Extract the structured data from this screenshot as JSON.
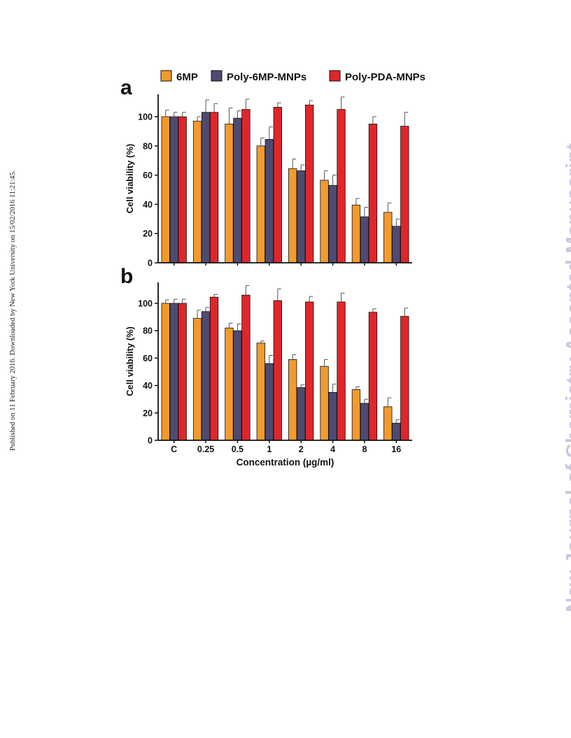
{
  "side_note": "Published on 11 February 2016. Downloaded by New York University on 15/02/2016 11:21:45.",
  "watermark": "New Journal of Chemistry Accepted Manuscript",
  "colors": {
    "6MP": "#f39a2e",
    "Poly-6MP-MNPs": "#4f4a72",
    "Poly-PDA-MNPs": "#e0262a"
  },
  "legend": [
    "6MP",
    "Poly-6MP-MNPs",
    "Poly-PDA-MNPs"
  ],
  "chart_data": [
    {
      "type": "bar",
      "panel": "a",
      "categories": [
        "C",
        "0.25",
        "0.5",
        "1",
        "2",
        "4",
        "8",
        "16"
      ],
      "ylabel": "Cell viability (%)",
      "xlabel": "",
      "ylim": [
        0,
        115
      ],
      "yticks": [
        0,
        20,
        40,
        60,
        80,
        100
      ],
      "series": [
        {
          "name": "6MP",
          "values": [
            100,
            97,
            95,
            80,
            64.5,
            56.5,
            39.5,
            34.5
          ],
          "errors": [
            4.5,
            3,
            11,
            5.5,
            6.5,
            6.5,
            4.5,
            6.5
          ]
        },
        {
          "name": "Poly-6MP-MNPs",
          "values": [
            100,
            103,
            99,
            84.5,
            63,
            53,
            31.5,
            25
          ],
          "errors": [
            3,
            8.5,
            5,
            8.5,
            4,
            7,
            6.5,
            5
          ]
        },
        {
          "name": "Poly-PDA-MNPs",
          "values": [
            100,
            103,
            105,
            106.5,
            108,
            105,
            95,
            93.5
          ],
          "errors": [
            3,
            6,
            7,
            3,
            3,
            8.5,
            5,
            9.5
          ]
        }
      ]
    },
    {
      "type": "bar",
      "panel": "b",
      "categories": [
        "C",
        "0.25",
        "0.5",
        "1",
        "2",
        "4",
        "8",
        "16"
      ],
      "ylabel": "Cell viability (%)",
      "xlabel": "Concentration (µg/ml)",
      "ylim": [
        0,
        115
      ],
      "yticks": [
        0,
        20,
        40,
        60,
        80,
        100
      ],
      "series": [
        {
          "name": "6MP",
          "values": [
            100,
            89,
            82,
            71,
            59,
            54,
            37,
            24.5
          ],
          "errors": [
            2.5,
            6,
            3.5,
            1.5,
            3.5,
            5,
            2,
            6.5
          ]
        },
        {
          "name": "Poly-6MP-MNPs",
          "values": [
            100,
            94,
            80,
            56,
            38.5,
            35,
            27,
            12.5
          ],
          "errors": [
            3,
            3,
            5,
            6,
            2,
            6,
            3,
            2.5
          ]
        },
        {
          "name": "Poly-PDA-MNPs",
          "values": [
            100,
            104.5,
            106,
            102,
            101,
            101,
            93.5,
            90.5
          ],
          "errors": [
            3,
            2,
            7,
            8.5,
            4,
            6.5,
            2.5,
            6
          ]
        }
      ]
    }
  ]
}
